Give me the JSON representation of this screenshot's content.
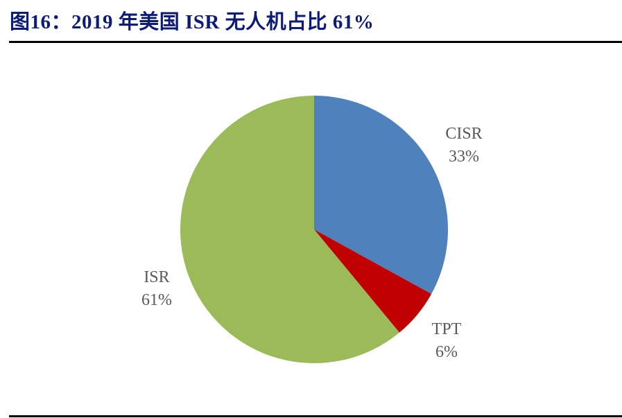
{
  "header": {
    "title": "图16：2019 年美国 ISR 无人机占比 61%"
  },
  "colors": {
    "title": "#0c1a78",
    "CISR": "#4f81bd",
    "TPT": "#c00000",
    "ISR": "#9bbb59",
    "label": "#595959"
  },
  "labels": {
    "CISR": {
      "name": "CISR",
      "pct": "33%"
    },
    "TPT": {
      "name": "TPT",
      "pct": "6%"
    },
    "ISR": {
      "name": "ISR",
      "pct": "61%"
    }
  },
  "chart_data": {
    "type": "pie",
    "title": "2019 年美国 ISR 无人机占比 61%",
    "categories": [
      "CISR",
      "TPT",
      "ISR"
    ],
    "values": [
      33,
      6,
      61
    ],
    "unit": "%",
    "start_angle": "12 o'clock, clockwise",
    "legend": "none (data labels outside slices)",
    "colors": [
      "#4f81bd",
      "#c00000",
      "#9bbb59"
    ]
  }
}
